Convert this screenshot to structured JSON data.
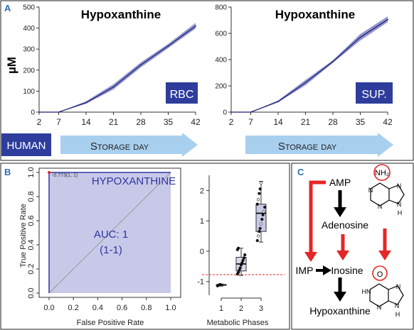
{
  "panel_a": {
    "label": "A",
    "ylabel": "µM",
    "human_label": "HUMAN",
    "storage_day_label": "Storage day",
    "charts": [
      {
        "title": "Hypoxanthine",
        "badge": "RBC",
        "type": "line",
        "x": [
          2,
          7,
          14,
          21,
          28,
          35,
          42
        ],
        "mean": [
          0,
          0,
          45,
          120,
          225,
          315,
          410
        ],
        "lower": [
          0,
          0,
          40,
          108,
          213,
          305,
          398
        ],
        "upper": [
          0,
          0,
          52,
          133,
          237,
          325,
          425
        ],
        "xticks": [
          2,
          7,
          14,
          21,
          28,
          35,
          42
        ],
        "yticks": [
          0,
          100,
          200,
          300,
          400,
          500
        ],
        "xlim": [
          2,
          42
        ],
        "ylim": [
          0,
          500
        ],
        "color": "#4a4fa8"
      },
      {
        "title": "Hypoxanthine",
        "badge": "SUP.",
        "type": "line",
        "x": [
          2,
          7,
          14,
          21,
          28,
          35,
          42
        ],
        "mean": [
          0,
          0,
          80,
          225,
          385,
          570,
          705
        ],
        "lower": [
          0,
          0,
          75,
          205,
          375,
          545,
          685
        ],
        "upper": [
          0,
          0,
          90,
          245,
          395,
          595,
          730
        ],
        "xticks": [
          2,
          7,
          14,
          21,
          28,
          35,
          42
        ],
        "yticks": [
          0,
          200,
          400,
          600,
          800
        ],
        "xlim": [
          2,
          42
        ],
        "ylim": [
          0,
          800
        ],
        "color": "#4a4fa8"
      }
    ]
  },
  "panel_b": {
    "label": "B",
    "roc": {
      "type": "line",
      "title": "HYPOXANTHINE",
      "auc_text": "AUC: 1",
      "ci_text": "(1-1)",
      "point_label": "-0.773(1, 1)",
      "xlabel": "False Positive Rate",
      "ylabel": "True Positive Rate",
      "xticks": [
        "0.0",
        "0.2",
        "0.4",
        "0.6",
        "0.8",
        "1.0"
      ],
      "yticks": [
        "0.0",
        "0.2",
        "0.4",
        "0.6",
        "0.8",
        "1.0"
      ],
      "xlim": [
        0,
        1
      ],
      "ylim": [
        0,
        1
      ],
      "fill_color": "#c8c9e8",
      "curve_color": "#2f35a0"
    },
    "phases": {
      "type": "box",
      "xlabel": "Metabolic Phases",
      "categories": [
        "1",
        "2",
        "3"
      ],
      "yticks": [
        "-1",
        "0",
        "1",
        "2"
      ],
      "ylim": [
        -1.45,
        2.5
      ],
      "threshold": -0.773,
      "boxes": [
        {
          "q1": -1.12,
          "median": -1.11,
          "q3": -1.1,
          "min": -1.15,
          "max": -1.08,
          "points": [
            -1.14,
            -1.12,
            -1.11,
            -1.1
          ]
        },
        {
          "q1": -0.65,
          "median": -0.42,
          "q3": -0.2,
          "min": -0.8,
          "max": 0.1,
          "points": [
            -0.75,
            -0.7,
            -0.62,
            -0.55,
            -0.45,
            -0.38,
            -0.3,
            -0.22,
            -0.12,
            0.05,
            0.1
          ]
        },
        {
          "q1": 0.65,
          "median": 1.25,
          "q3": 1.55,
          "min": 0.3,
          "max": 2.3,
          "points": [
            0.35,
            0.5,
            0.65,
            0.75,
            0.9,
            1.05,
            1.2,
            1.3,
            1.45,
            1.55,
            1.7,
            1.9,
            2.05,
            2.25
          ]
        }
      ]
    }
  },
  "panel_c": {
    "label": "C",
    "amp": "AMP",
    "adenosine": "Adenosine",
    "imp": "IMP",
    "inosine": "Inosine",
    "hypoxanthine": "Hypoxanthine",
    "nh2": "NH₂",
    "o": "O",
    "n": "N",
    "hn": "HN",
    "h": "H",
    "arrow_black": "#000000",
    "arrow_red": "#e32626"
  }
}
